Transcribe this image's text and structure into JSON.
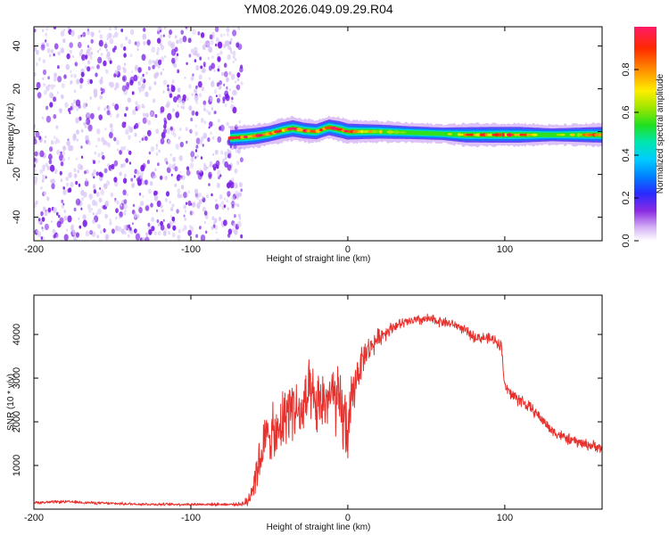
{
  "title": "YM08.2026.049.09.29.R04",
  "colors": {
    "snr_line": "#e8302c",
    "speckle_dark": "#7a1ee6",
    "speckle_light": "#d9c6f6"
  },
  "chart_data": [
    {
      "type": "heatmap",
      "name": "spectrogram",
      "xlabel": "Height of straight line (km)",
      "ylabel": "Frequency (Hz)",
      "xlim": [
        -200,
        162
      ],
      "ylim": [
        -51,
        49
      ],
      "x_ticks": [
        -200,
        -100,
        0,
        100
      ],
      "x_tick_labels": [
        "-200",
        "-100",
        "0",
        "100"
      ],
      "y_ticks": [
        -40,
        -20,
        0,
        20,
        40
      ],
      "y_tick_labels": [
        "-40",
        "-20",
        "0",
        "20",
        "40"
      ],
      "noise_region_x": [
        -200,
        -72
      ],
      "ridge": {
        "x": [
          -75,
          -65,
          -58,
          -50,
          -42,
          -35,
          -28,
          -20,
          -12,
          -5,
          0,
          10,
          20,
          40,
          60,
          75,
          90,
          110,
          130,
          162
        ],
        "freq": [
          -3,
          -2.5,
          -2,
          -1,
          0.5,
          1.5,
          0.5,
          0,
          2,
          1,
          0,
          0,
          0,
          -0.5,
          -1,
          -1.5,
          -1.5,
          -1.5,
          -1.5,
          -1.5
        ],
        "peak": [
          0.9,
          0.95,
          0.95,
          0.9,
          0.95,
          1.0,
          0.9,
          0.85,
          0.9,
          1.0,
          0.95,
          0.8,
          0.7,
          0.55,
          0.5,
          0.85,
          0.9,
          0.9,
          0.55,
          0.9
        ]
      },
      "colorbar": {
        "label": "Normalized spectral amplitude",
        "range": [
          0,
          1
        ],
        "ticks": [
          0.0,
          0.2,
          0.4,
          0.6,
          0.8
        ],
        "tick_labels": [
          "0.0",
          "0.2",
          "0.4",
          "0.6",
          "0.8"
        ]
      }
    },
    {
      "type": "line",
      "name": "snr",
      "xlabel": "Height of straight line (km)",
      "ylabel": "SNR (10 * v/v)",
      "xlim": [
        -200,
        162
      ],
      "ylim": [
        0,
        4900
      ],
      "x_ticks": [
        -200,
        -100,
        0,
        100
      ],
      "x_tick_labels": [
        "-200",
        "-100",
        "0",
        "100"
      ],
      "y_ticks": [
        1000,
        2000,
        3000,
        4000
      ],
      "y_tick_labels": [
        "1000",
        "2000",
        "3000",
        "4000"
      ],
      "series": [
        {
          "name": "SNR",
          "x": [
            -200,
            -180,
            -160,
            -140,
            -120,
            -100,
            -80,
            -70,
            -64,
            -60,
            -55,
            -50,
            -45,
            -40,
            -35,
            -30,
            -25,
            -20,
            -15,
            -10,
            -5,
            0,
            5,
            10,
            20,
            30,
            40,
            50,
            60,
            70,
            80,
            90,
            95,
            98,
            100,
            105,
            110,
            120,
            130,
            140,
            150,
            162
          ],
          "y": [
            150,
            170,
            140,
            120,
            110,
            110,
            110,
            110,
            150,
            600,
            1300,
            1800,
            1600,
            2200,
            2400,
            2100,
            2600,
            2300,
            2500,
            2600,
            2300,
            1800,
            3000,
            3500,
            3950,
            4200,
            4300,
            4350,
            4300,
            4200,
            3950,
            3900,
            3850,
            3700,
            2800,
            2600,
            2500,
            2200,
            1800,
            1600,
            1500,
            1400
          ],
          "noise": [
            40,
            40,
            40,
            40,
            40,
            40,
            40,
            40,
            150,
            500,
            700,
            800,
            800,
            900,
            900,
            900,
            900,
            900,
            900,
            900,
            1100,
            1000,
            600,
            400,
            250,
            150,
            150,
            150,
            150,
            120,
            150,
            150,
            150,
            200,
            150,
            200,
            200,
            150,
            150,
            150,
            150,
            150
          ]
        }
      ]
    }
  ]
}
